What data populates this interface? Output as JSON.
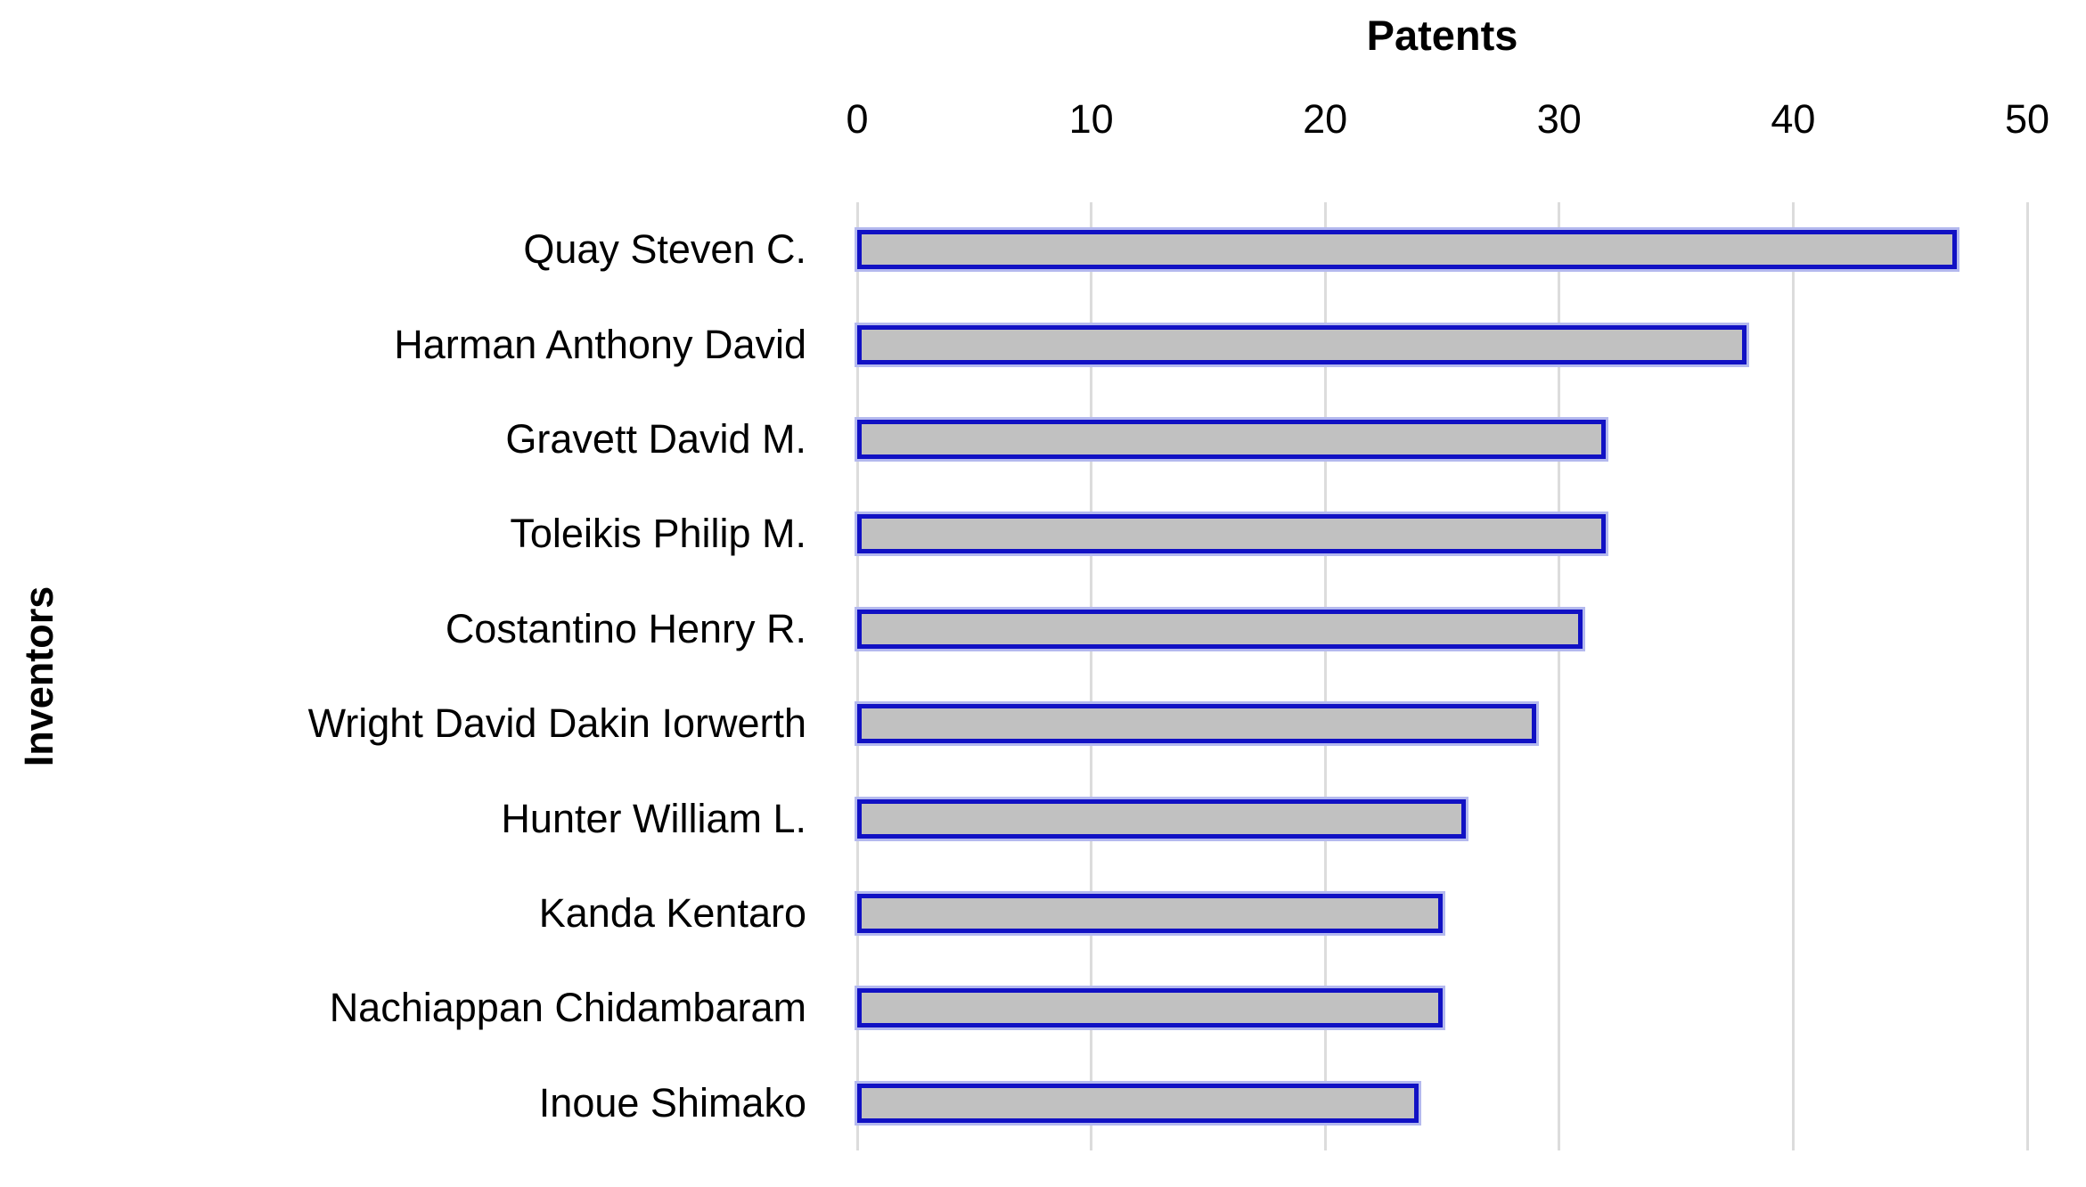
{
  "chart_data": {
    "type": "bar",
    "orientation": "horizontal",
    "title": "Patents",
    "xlabel": "Patents",
    "ylabel": "Inventors",
    "categories": [
      "Quay Steven C.",
      "Harman Anthony David",
      "Gravett David M.",
      "Toleikis Philip M.",
      "Costantino Henry R.",
      "Wright David Dakin Iorwerth",
      "Hunter William L.",
      "Kanda Kentaro",
      "Nachiappan Chidambaram",
      "Inoue Shimako"
    ],
    "values": [
      47,
      38,
      32,
      32,
      31,
      29,
      26,
      25,
      25,
      24
    ],
    "xlim": [
      0,
      50
    ],
    "xticks": [
      0,
      10,
      20,
      30,
      40,
      50
    ],
    "grid": "vertical-gridlines-only",
    "legend": "none",
    "colors": {
      "bar_fill": "#c1c1c1",
      "bar_border": "#1111c4",
      "bar_glow": "#b4b9ee",
      "gridline": "#dcdcdc",
      "text": "#000000",
      "background": "#ffffff"
    }
  }
}
